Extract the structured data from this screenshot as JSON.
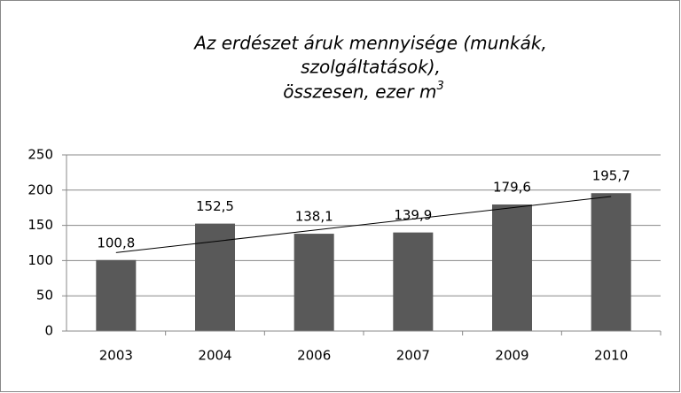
{
  "chart_data": {
    "type": "bar",
    "title": [
      "Az erdészet áruk mennyisége (munkák,",
      "szolgáltatások),",
      "összesen, ezer m"
    ],
    "title_superscript": "3",
    "categories": [
      "2003",
      "2004",
      "2006",
      "2007",
      "2009",
      "2010"
    ],
    "values": [
      100.8,
      152.5,
      138.1,
      139.9,
      179.6,
      195.7
    ],
    "value_labels": [
      "100,8",
      "152,5",
      "138,1",
      "139,9",
      "179,6",
      "195,7"
    ],
    "color": "#595959",
    "ylim": [
      0,
      250
    ],
    "yticks": [
      0,
      50,
      100,
      150,
      200,
      250
    ],
    "grid": true,
    "trendline": "linear"
  }
}
